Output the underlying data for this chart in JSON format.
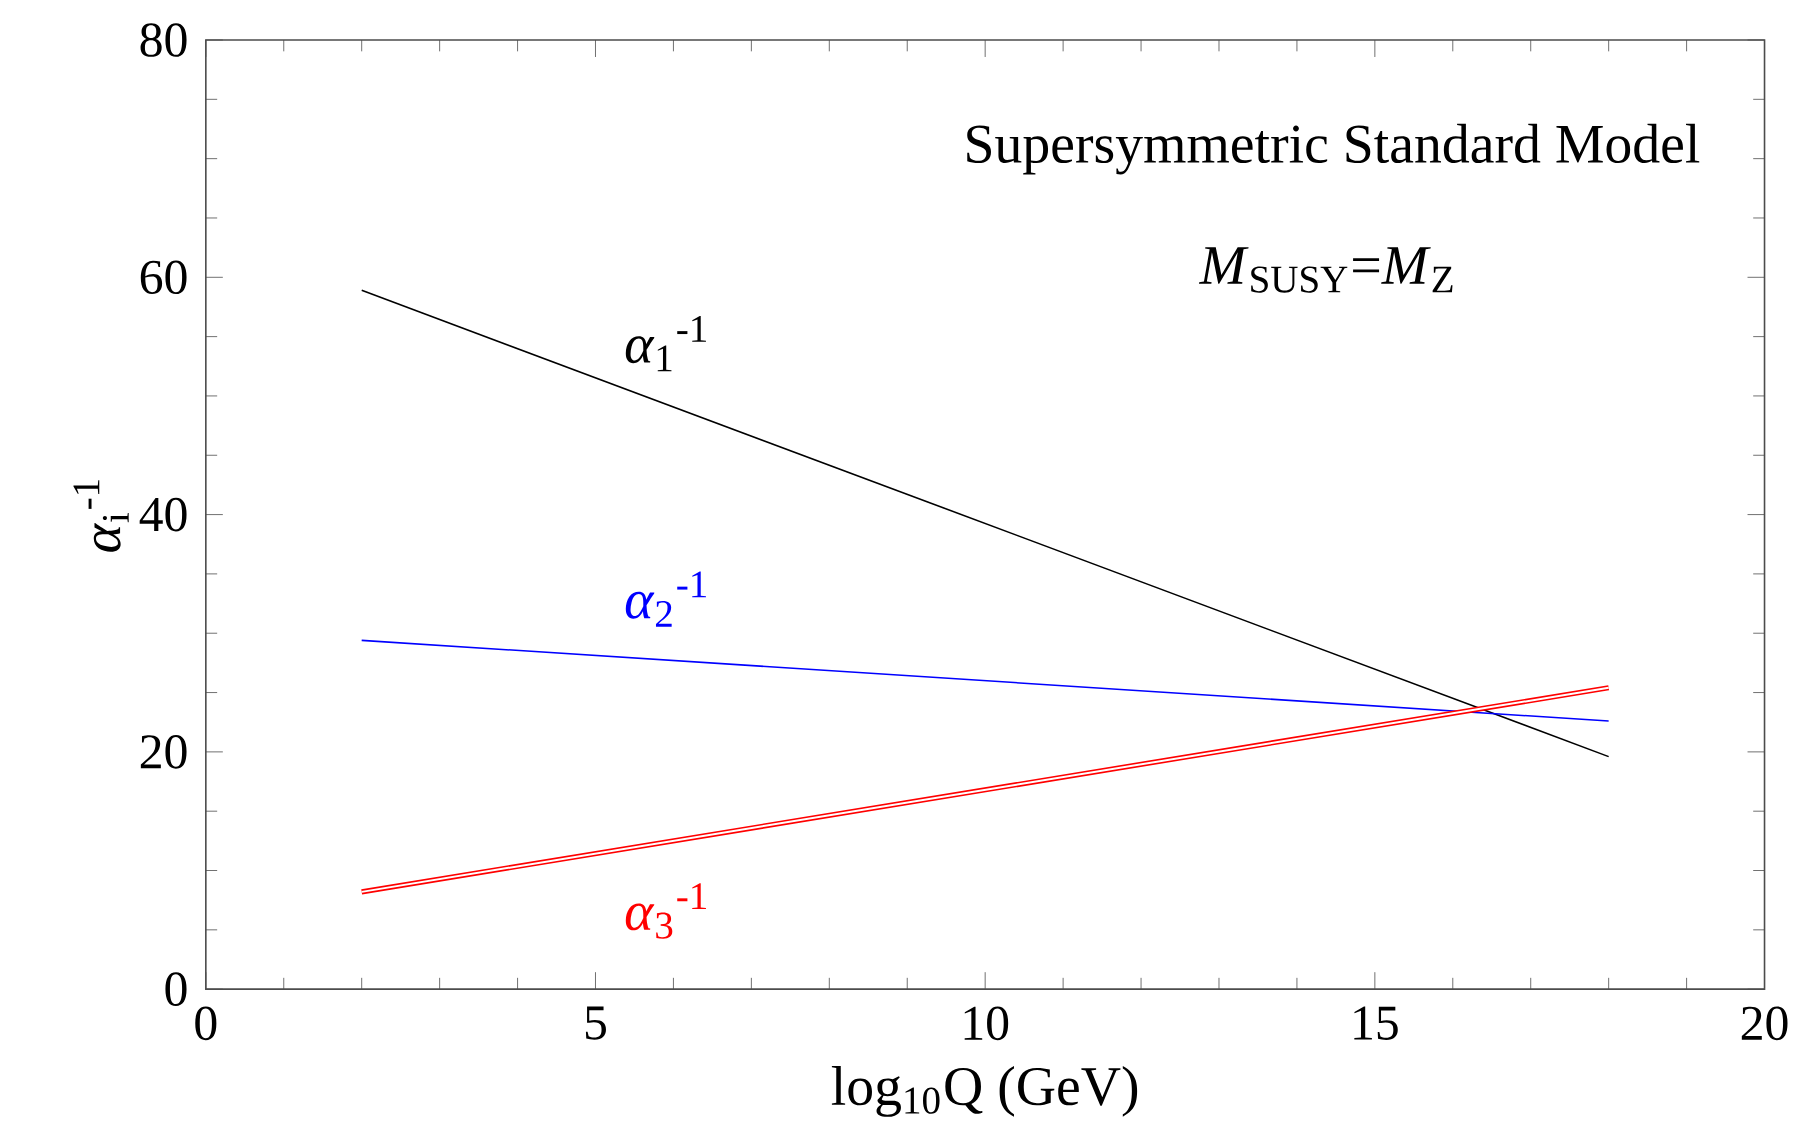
{
  "chart_data": {
    "type": "line",
    "title": "Supersymmetric Standard Model",
    "subtitle": "*M*$_{SUSY}$=*M*$_{Z}$",
    "xlabel": "log$_{10}$Q (GeV)",
    "ylabel": "*α*$_{i}$$^{-1}$",
    "x": [
      2,
      18
    ],
    "series": [
      {
        "name": "*α*$_{1}$$^{-1}$",
        "color": "#000000",
        "values": [
          58.9,
          19.6
        ]
      },
      {
        "name": "*α*$_{2}$$^{-1}$",
        "color": "#0000ff",
        "values": [
          29.4,
          22.6
        ]
      },
      {
        "name": "*α*$_{3}$$^{-1}$",
        "color": "#ff0000",
        "values": [
          8.2,
          25.4
        ]
      }
    ],
    "xlim": [
      0,
      20
    ],
    "ylim": [
      0,
      80
    ],
    "xticks": [
      0,
      5,
      10,
      15,
      20
    ],
    "yticks": [
      0,
      20,
      40,
      60,
      80
    ],
    "grid": false,
    "legend": false,
    "marker": "none",
    "line_style": "solid"
  }
}
